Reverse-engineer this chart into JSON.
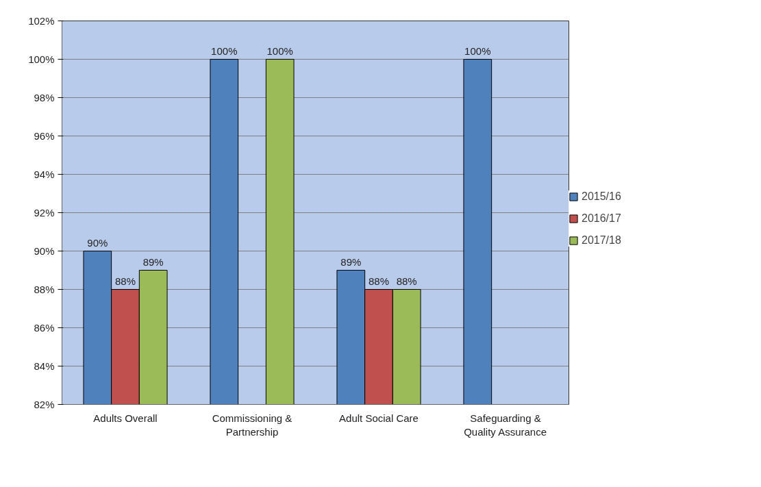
{
  "chart_data": {
    "type": "bar",
    "categories": [
      "Adults Overall",
      "Commissioning & Partnership",
      "Adult Social Care",
      "Safeguarding & Quality Assurance"
    ],
    "series": [
      {
        "name": "2015/16",
        "color": "#4f81bd",
        "values": [
          90,
          100,
          89,
          100
        ],
        "value_labels": [
          "90%",
          "100%",
          "89%",
          "100%"
        ]
      },
      {
        "name": "2016/17",
        "color": "#c0504d",
        "values": [
          88,
          null,
          88,
          null
        ],
        "value_labels": [
          "88%",
          null,
          "88%",
          null
        ]
      },
      {
        "name": "2017/18",
        "color": "#9bbb59",
        "values": [
          89,
          100,
          88,
          null
        ],
        "value_labels": [
          "89%",
          "100%",
          "88%",
          null
        ]
      }
    ],
    "ylim": [
      82,
      102
    ],
    "yticks": [
      {
        "value": 82,
        "label": "82%"
      },
      {
        "value": 84,
        "label": "84%"
      },
      {
        "value": 86,
        "label": "86%"
      },
      {
        "value": 88,
        "label": "88%"
      },
      {
        "value": 90,
        "label": "90%"
      },
      {
        "value": 92,
        "label": "92%"
      },
      {
        "value": 94,
        "label": "94%"
      },
      {
        "value": 96,
        "label": "96%"
      },
      {
        "value": 98,
        "label": "98%"
      },
      {
        "value": 100,
        "label": "100%"
      },
      {
        "value": 102,
        "label": "102%"
      }
    ],
    "grid": "y",
    "legend": "right"
  }
}
